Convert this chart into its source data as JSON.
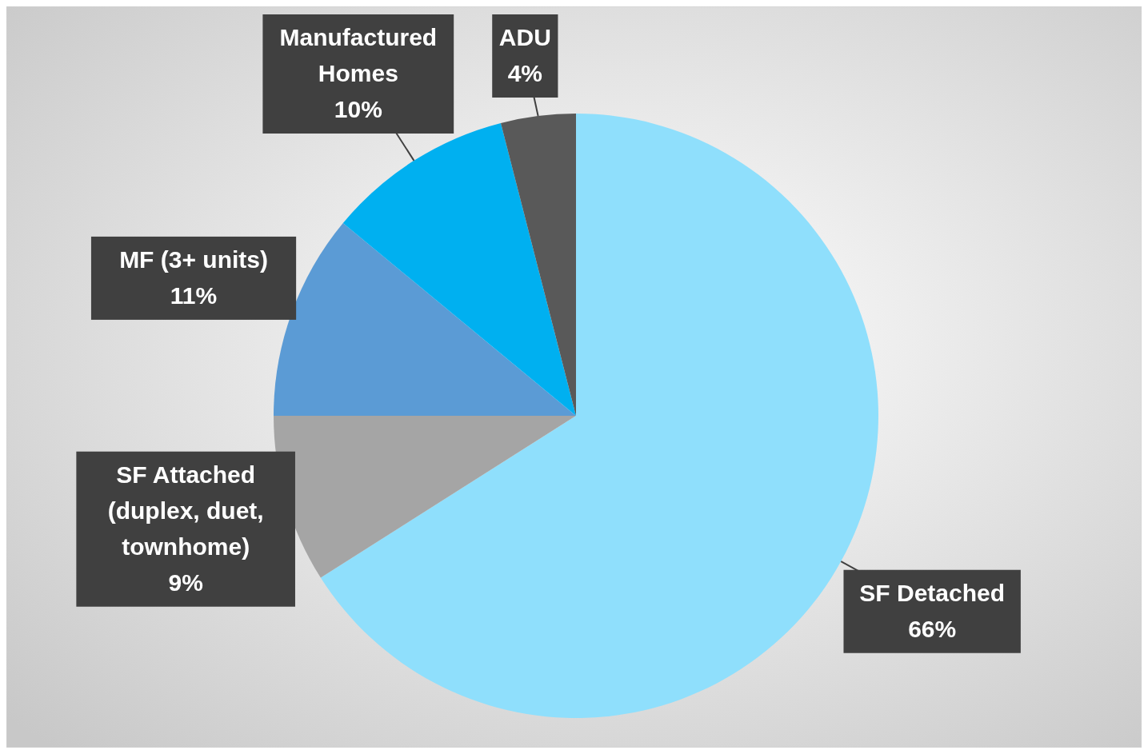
{
  "chart_data": {
    "type": "pie",
    "categories": [
      "SF Detached",
      "SF Attached (duplex, duet, townhome)",
      "MF (3+ units)",
      "Manufactured Homes",
      "ADU"
    ],
    "values": [
      66,
      9,
      11,
      10,
      4
    ],
    "colors": [
      "#8fdffc",
      "#a5a5a5",
      "#5b9bd5",
      "#00b0f0",
      "#595959"
    ],
    "value_labels": [
      "66%",
      "9%",
      "11%",
      "10%",
      "4%"
    ]
  }
}
